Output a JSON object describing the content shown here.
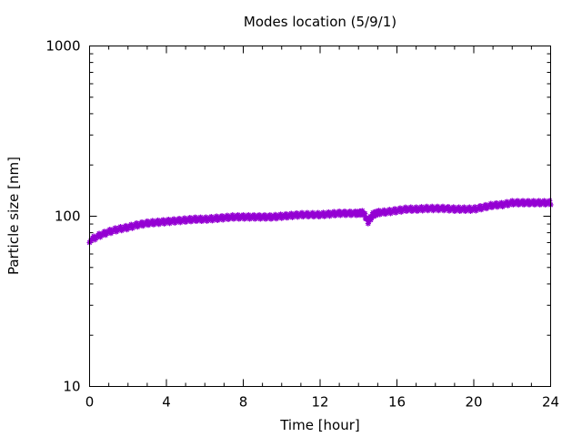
{
  "chart_data": {
    "type": "scatter",
    "title": "Modes location (5/9/1)",
    "xlabel": "Time [hour]",
    "ylabel": "Particle size [nm]",
    "xlim": [
      0,
      24
    ],
    "ylim": [
      10,
      1000
    ],
    "yscale": "log",
    "x_ticks": [
      0,
      4,
      8,
      12,
      16,
      20,
      24
    ],
    "x_tick_labels": [
      "0",
      "4",
      "8",
      "12",
      "16",
      "20",
      "24"
    ],
    "y_ticks": [
      10,
      100,
      1000
    ],
    "y_tick_labels": [
      "10",
      "100",
      "1000"
    ],
    "grid": false,
    "marker_color": "#9400d3",
    "series": [
      {
        "x": [
          0,
          0.5,
          1,
          1.5,
          2,
          2.5,
          3,
          3.5,
          4,
          4.5,
          5,
          5.5,
          6,
          6.5,
          7,
          7.5,
          8,
          8.5,
          9,
          9.5,
          10,
          10.5,
          11,
          11.5,
          12,
          12.5,
          13,
          13.5,
          14,
          14.25,
          14.5,
          14.75,
          15,
          15.5,
          16,
          16.5,
          17,
          17.5,
          18,
          18.5,
          19,
          19.5,
          20,
          20.5,
          21,
          21.5,
          22,
          22.5,
          23,
          23.5,
          24
        ],
        "y": [
          72,
          77,
          81,
          84,
          86,
          89,
          91,
          92,
          93,
          94,
          95,
          96,
          96,
          97,
          98,
          99,
          99,
          99,
          99,
          99,
          100,
          101,
          102,
          102,
          102,
          103,
          104,
          104,
          104,
          105,
          93,
          102,
          105,
          106,
          108,
          110,
          110,
          111,
          111,
          111,
          110,
          110,
          110,
          113,
          116,
          117,
          120,
          120,
          120,
          120,
          120
        ]
      }
    ]
  }
}
